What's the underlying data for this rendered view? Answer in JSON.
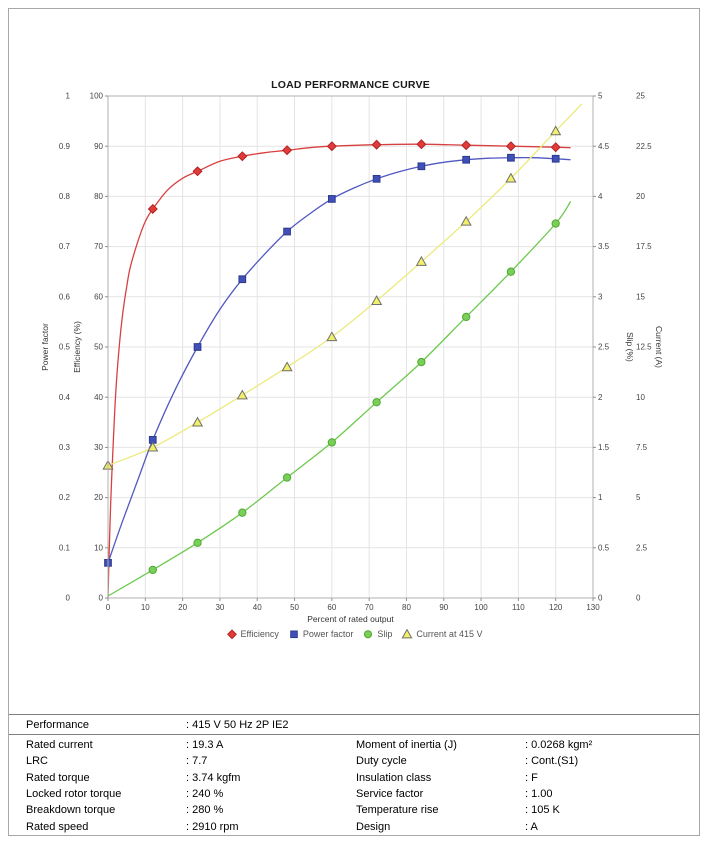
{
  "chart_data": {
    "type": "line",
    "title": "LOAD PERFORMANCE CURVE",
    "grid": true,
    "legend_position": "bottom",
    "x_axis": {
      "label": "Percent of rated output",
      "min": 0,
      "max": 130,
      "tick_values": [
        0,
        10,
        20,
        30,
        40,
        50,
        60,
        70,
        80,
        90,
        100,
        110,
        120,
        130
      ],
      "tick_labels": [
        "0",
        "10",
        "20",
        "30",
        "40",
        "50",
        "60",
        "70",
        "80",
        "90",
        "100",
        "110",
        "120",
        "130"
      ]
    },
    "y_axes": [
      {
        "id": "power_factor",
        "label": "Power factor",
        "side": "left_outer",
        "min": 0,
        "max": 1,
        "tick_values": [
          0,
          0.1,
          0.2,
          0.3,
          0.4,
          0.5,
          0.6,
          0.7,
          0.8,
          0.9,
          1
        ],
        "tick_labels": [
          "0",
          "0.1",
          "0.2",
          "0.3",
          "0.4",
          "0.5",
          "0.6",
          "0.7",
          "0.8",
          "0.9",
          "1"
        ]
      },
      {
        "id": "efficiency",
        "label": "Efficiency (%)",
        "side": "left_inner",
        "min": 0,
        "max": 100,
        "tick_values": [
          0,
          10,
          20,
          30,
          40,
          50,
          60,
          70,
          80,
          90,
          100
        ],
        "tick_labels": [
          "0",
          "10",
          "20",
          "30",
          "40",
          "50",
          "60",
          "70",
          "80",
          "90",
          "100"
        ]
      },
      {
        "id": "slip",
        "label": "Slip (%)",
        "side": "right_inner",
        "min": 0,
        "max": 5,
        "tick_values": [
          0,
          0.5,
          1,
          1.5,
          2,
          2.5,
          3,
          3.5,
          4,
          4.5,
          5
        ],
        "tick_labels": [
          "0",
          "0.5",
          "1",
          "1.5",
          "2",
          "2.5",
          "3",
          "3.5",
          "4",
          "4.5",
          "5"
        ]
      },
      {
        "id": "current",
        "label": "Current (A)",
        "side": "right_outer",
        "min": 0,
        "max": 25,
        "tick_values": [
          0,
          2.5,
          5,
          7.5,
          10,
          12.5,
          15,
          17.5,
          20,
          22.5,
          25
        ],
        "tick_labels": [
          "0",
          "2.5",
          "5",
          "7.5",
          "10",
          "12.5",
          "15",
          "17.5",
          "20",
          "22.5",
          "25"
        ]
      }
    ],
    "series": [
      {
        "name": "Efficiency",
        "axis": "efficiency",
        "marker": "diamond",
        "color": "#e23b3b",
        "marker_stroke": "#b22222",
        "line_color": "#d84040",
        "points": [
          [
            12,
            77.5
          ],
          [
            24,
            85
          ],
          [
            36,
            88
          ],
          [
            48,
            89.2
          ],
          [
            60,
            90
          ],
          [
            72,
            90.3
          ],
          [
            84,
            90.4
          ],
          [
            96,
            90.2
          ],
          [
            108,
            90
          ],
          [
            120,
            89.8
          ]
        ],
        "line": [
          [
            0,
            0
          ],
          [
            0.5,
            14
          ],
          [
            1,
            24
          ],
          [
            2,
            40
          ],
          [
            3,
            50
          ],
          [
            4,
            57
          ],
          [
            5,
            62
          ],
          [
            6,
            66
          ],
          [
            8,
            71
          ],
          [
            10,
            75
          ],
          [
            12,
            77.5
          ],
          [
            16,
            81.3
          ],
          [
            20,
            83.6
          ],
          [
            24,
            85
          ],
          [
            30,
            87
          ],
          [
            36,
            88
          ],
          [
            42,
            88.7
          ],
          [
            48,
            89.2
          ],
          [
            54,
            89.7
          ],
          [
            60,
            90
          ],
          [
            72,
            90.3
          ],
          [
            84,
            90.4
          ],
          [
            96,
            90.2
          ],
          [
            108,
            90
          ],
          [
            120,
            89.8
          ],
          [
            124,
            89.7
          ]
        ]
      },
      {
        "name": "Power factor",
        "axis": "power_factor",
        "marker": "square",
        "color": "#4150b8",
        "marker_stroke": "#2c3a8c",
        "line_color": "#5059c0",
        "points": [
          [
            0,
            0.07
          ],
          [
            12,
            0.315
          ],
          [
            24,
            0.5
          ],
          [
            36,
            0.635
          ],
          [
            48,
            0.73
          ],
          [
            60,
            0.795
          ],
          [
            72,
            0.835
          ],
          [
            84,
            0.86
          ],
          [
            96,
            0.873
          ],
          [
            108,
            0.877
          ],
          [
            120,
            0.875
          ]
        ],
        "line": [
          [
            0,
            0.07
          ],
          [
            4,
            0.155
          ],
          [
            8,
            0.235
          ],
          [
            12,
            0.315
          ],
          [
            18,
            0.415
          ],
          [
            24,
            0.5
          ],
          [
            30,
            0.575
          ],
          [
            36,
            0.635
          ],
          [
            42,
            0.685
          ],
          [
            48,
            0.73
          ],
          [
            54,
            0.765
          ],
          [
            60,
            0.795
          ],
          [
            66,
            0.817
          ],
          [
            72,
            0.835
          ],
          [
            78,
            0.849
          ],
          [
            84,
            0.86
          ],
          [
            90,
            0.868
          ],
          [
            96,
            0.873
          ],
          [
            102,
            0.876
          ],
          [
            108,
            0.877
          ],
          [
            114,
            0.877
          ],
          [
            120,
            0.875
          ],
          [
            124,
            0.873
          ]
        ]
      },
      {
        "name": "Slip",
        "axis": "slip",
        "marker": "circle",
        "color": "#79cf57",
        "marker_stroke": "#4ea832",
        "line_color": "#6cc94e",
        "points": [
          [
            12,
            0.28
          ],
          [
            24,
            0.55
          ],
          [
            36,
            0.85
          ],
          [
            48,
            1.2
          ],
          [
            60,
            1.55
          ],
          [
            72,
            1.95
          ],
          [
            84,
            2.35
          ],
          [
            96,
            2.8
          ],
          [
            108,
            3.25
          ],
          [
            120,
            3.73
          ]
        ],
        "line": [
          [
            0,
            0.02
          ],
          [
            12,
            0.28
          ],
          [
            24,
            0.55
          ],
          [
            36,
            0.85
          ],
          [
            48,
            1.2
          ],
          [
            60,
            1.55
          ],
          [
            72,
            1.95
          ],
          [
            84,
            2.35
          ],
          [
            96,
            2.8
          ],
          [
            108,
            3.25
          ],
          [
            120,
            3.73
          ],
          [
            124,
            3.95
          ]
        ]
      },
      {
        "name": "Current at 415 V",
        "axis": "current",
        "marker": "triangle",
        "color": "#f2ef6a",
        "marker_stroke": "#6f6f6f",
        "line_color": "#ecea7c",
        "points": [
          [
            0,
            6.6
          ],
          [
            12,
            7.5
          ],
          [
            24,
            8.75
          ],
          [
            36,
            10.1
          ],
          [
            48,
            11.5
          ],
          [
            60,
            13
          ],
          [
            72,
            14.8
          ],
          [
            84,
            16.75
          ],
          [
            96,
            18.75
          ],
          [
            108,
            20.9
          ],
          [
            120,
            23.25
          ]
        ],
        "line": [
          [
            0,
            6.6
          ],
          [
            12,
            7.5
          ],
          [
            24,
            8.75
          ],
          [
            36,
            10.1
          ],
          [
            48,
            11.5
          ],
          [
            60,
            13
          ],
          [
            72,
            14.8
          ],
          [
            84,
            16.75
          ],
          [
            96,
            18.75
          ],
          [
            108,
            20.9
          ],
          [
            120,
            23.25
          ],
          [
            127,
            24.6
          ]
        ]
      }
    ],
    "legend": [
      {
        "label": "Efficiency",
        "marker": "diamond",
        "color": "#e23b3b",
        "marker_stroke": "#b22222"
      },
      {
        "label": "Power factor",
        "marker": "square",
        "color": "#4150b8",
        "marker_stroke": "#2c3a8c"
      },
      {
        "label": "Slip",
        "marker": "circle",
        "color": "#79cf57",
        "marker_stroke": "#4ea832"
      },
      {
        "label": "Current at 415 V",
        "marker": "triangle",
        "color": "#f2ef6a",
        "marker_stroke": "#6f6f6f"
      }
    ]
  },
  "table": {
    "header": {
      "label": "Performance",
      "value": ": 415 V 50 Hz 2P IE2"
    },
    "rows": [
      {
        "left_label": "Rated current",
        "left_value": ": 19.3 A",
        "right_label": "Moment of inertia (J)",
        "right_value": ": 0.0268 kgm²"
      },
      {
        "left_label": "LRC",
        "left_value": ": 7.7",
        "right_label": "Duty cycle",
        "right_value": ": Cont.(S1)"
      },
      {
        "left_label": "Rated torque",
        "left_value": ": 3.74 kgfm",
        "right_label": "Insulation class",
        "right_value": ": F"
      },
      {
        "left_label": "Locked rotor torque",
        "left_value": ": 240 %",
        "right_label": "Service factor",
        "right_value": ": 1.00"
      },
      {
        "left_label": "Breakdown torque",
        "left_value": ": 280 %",
        "right_label": "Temperature rise",
        "right_value": ": 105 K"
      },
      {
        "left_label": "Rated speed",
        "left_value": ": 2910 rpm",
        "right_label": "Design",
        "right_value": ": A"
      }
    ]
  }
}
